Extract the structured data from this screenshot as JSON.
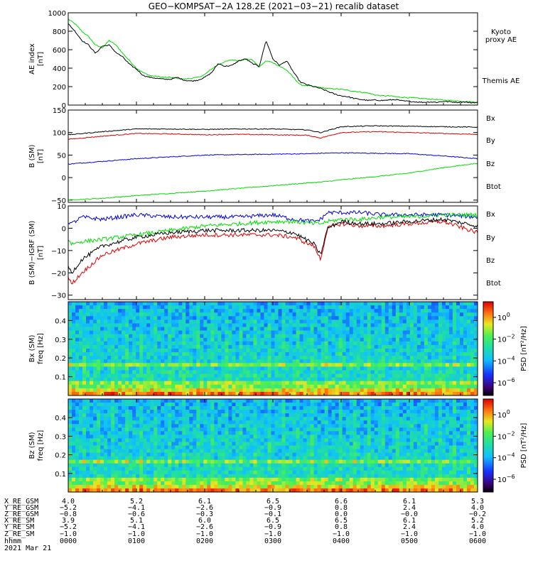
{
  "title": "GEO−KOMPSAT−2A 128.2E (2021−03−21) recalib dataset",
  "colors": {
    "black": "#000000",
    "red": "#dd0000",
    "blue": "#0000dd",
    "green": "#00dd00"
  },
  "time_axis": {
    "range_hours": [
      0,
      6
    ],
    "tick_hours": [
      0,
      1,
      2,
      3,
      4,
      5,
      6
    ]
  },
  "panels": [
    {
      "id": "ae",
      "ylabel1": "AE index",
      "ylabel2": "[nT]",
      "yticks": [
        "1000",
        "800",
        "600",
        "400",
        "200",
        "0"
      ],
      "yrange": [
        0,
        1000
      ],
      "series_labels": [
        {
          "text": "Kyoto",
          "color": "#00dd00"
        },
        {
          "text": "proxy AE",
          "color": "#00dd00"
        },
        {
          "text": "Themis AE",
          "color": "#000000"
        }
      ],
      "chart_data": {
        "type": "line",
        "x_hours": [
          0,
          0.1,
          0.2,
          0.3,
          0.4,
          0.5,
          0.6,
          0.7,
          0.8,
          0.9,
          1.0,
          1.1,
          1.2,
          1.3,
          1.4,
          1.5,
          1.6,
          1.7,
          1.8,
          1.9,
          2.0,
          2.1,
          2.2,
          2.3,
          2.4,
          2.5,
          2.6,
          2.7,
          2.8,
          2.9,
          3.0,
          3.1,
          3.2,
          3.3,
          3.4,
          3.5,
          3.6,
          3.7,
          3.8,
          3.9,
          4.0,
          4.1,
          4.2,
          4.3,
          4.4,
          4.5,
          4.6,
          4.7,
          4.8,
          4.9,
          5.0,
          5.1,
          5.2,
          5.3,
          5.4,
          5.5,
          5.6,
          5.7,
          5.8,
          5.9,
          6.0
        ],
        "series": [
          {
            "name": "Kyoto proxy AE",
            "color": "#00dd00",
            "values": [
              930,
              880,
              800,
              740,
              650,
              620,
              700,
              650,
              560,
              480,
              400,
              350,
              320,
              310,
              300,
              300,
              290,
              280,
              290,
              300,
              330,
              390,
              440,
              470,
              490,
              480,
              500,
              490,
              410,
              480,
              460,
              420,
              380,
              300,
              220,
              210,
              200,
              190,
              180,
              175,
              170,
              160,
              150,
              140,
              130,
              110,
              100,
              100,
              90,
              85,
              80,
              75,
              70,
              65,
              60,
              55,
              50,
              45,
              40,
              35,
              30
            ]
          },
          {
            "name": "Themis AE",
            "color": "#000000",
            "values": [
              880,
              800,
              700,
              650,
              560,
              640,
              650,
              570,
              520,
              440,
              390,
              320,
              300,
              290,
              280,
              280,
              300,
              270,
              260,
              270,
              300,
              350,
              450,
              420,
              430,
              480,
              500,
              450,
              420,
              700,
              500,
              430,
              480,
              360,
              250,
              220,
              200,
              180,
              150,
              120,
              100,
              90,
              70,
              60,
              50,
              55,
              50,
              55,
              60,
              45,
              40,
              35,
              30,
              35,
              30,
              40,
              35,
              30,
              35,
              25,
              30
            ]
          }
        ]
      }
    },
    {
      "id": "b",
      "ylabel1": "B (SM)",
      "ylabel2": "[nT]",
      "yticks": [
        "150",
        "100",
        "50",
        "0",
        "−50"
      ],
      "yrange": [
        -55,
        150
      ],
      "series_labels": [
        {
          "text": "Bx",
          "color": "#0000dd"
        },
        {
          "text": "By",
          "color": "#00dd00"
        },
        {
          "text": "Bz",
          "color": "#dd0000"
        },
        {
          "text": "Btot",
          "color": "#000000"
        }
      ],
      "chart_data": {
        "type": "line",
        "x_hours": [
          0,
          0.5,
          1,
          1.5,
          2,
          2.5,
          3,
          3.5,
          3.7,
          4,
          4.5,
          5,
          5.5,
          6
        ],
        "series": [
          {
            "name": "Bx",
            "color": "#0000dd",
            "values": [
              30,
              36,
              42,
              46,
              50,
              51,
              52,
              53,
              54,
              55,
              54,
              53,
              48,
              42
            ]
          },
          {
            "name": "By",
            "color": "#00dd00",
            "values": [
              -50,
              -46,
              -40,
              -35,
              -30,
              -24,
              -18,
              -12,
              -10,
              -5,
              2,
              10,
              22,
              32
            ]
          },
          {
            "name": "Bz",
            "color": "#dd0000",
            "values": [
              85,
              92,
              98,
              97,
              95,
              96,
              95,
              94,
              88,
              100,
              102,
              100,
              98,
              96
            ]
          },
          {
            "name": "Btot",
            "color": "#000000",
            "values": [
              95,
              102,
              108,
              108,
              107,
              108,
              108,
              106,
              100,
              113,
              115,
              114,
              113,
              112
            ]
          }
        ]
      }
    },
    {
      "id": "dbigrf",
      "ylabel1": "B (SM)−IGRF (SM)",
      "ylabel2": "[nT]",
      "yticks": [
        "10",
        "0",
        "−10",
        "−20",
        "−30"
      ],
      "yrange": [
        -32,
        10
      ],
      "series_labels": [
        {
          "text": "Bx",
          "color": "#0000dd"
        },
        {
          "text": "By",
          "color": "#00dd00"
        },
        {
          "text": "Bz",
          "color": "#dd0000"
        },
        {
          "text": "Btot",
          "color": "#000000"
        }
      ],
      "chart_data": {
        "type": "line",
        "x_hours": [
          0,
          0.05,
          0.2,
          0.5,
          1.0,
          1.5,
          2.0,
          2.5,
          3.0,
          3.3,
          3.6,
          3.7,
          3.8,
          4.0,
          4.3,
          4.6,
          5.0,
          5.5,
          6.0
        ],
        "series": [
          {
            "name": "Bx",
            "color": "#0000dd",
            "values": [
              3,
              2,
              5,
              4,
              6,
              5,
              5,
              5,
              6,
              4,
              3,
              4,
              7,
              7,
              7,
              6,
              6,
              6,
              5
            ]
          },
          {
            "name": "By",
            "color": "#00dd00",
            "values": [
              -5,
              -7,
              -6,
              -5,
              -3,
              -1,
              1,
              2,
              3,
              3,
              2,
              2,
              3,
              4,
              4,
              5,
              5,
              6,
              6
            ]
          },
          {
            "name": "Bz",
            "color": "#dd0000",
            "values": [
              -22,
              -25,
              -20,
              -12,
              -7,
              -4,
              -3,
              -3,
              -3,
              -4,
              -8,
              -14,
              0,
              2,
              1,
              1,
              2,
              3,
              -2
            ]
          },
          {
            "name": "Btot",
            "color": "#000000",
            "values": [
              -17,
              -20,
              -14,
              -8,
              -4,
              -2,
              -1,
              -1,
              -1,
              -2,
              -7,
              -12,
              0,
              3,
              2,
              2,
              3,
              4,
              1
            ]
          }
        ]
      }
    },
    {
      "id": "bxpsd",
      "ylabel1": "Bx (SM)",
      "ylabel2": "freq [Hz]",
      "yticks": [
        "0.4",
        "0.3",
        "0.2",
        "0.1"
      ],
      "yrange": [
        0,
        0.5
      ],
      "colorbar_label": "PSD [nT²/Hz]",
      "colorbar_ticks": [
        {
          "base": "10",
          "exp": "0"
        },
        {
          "base": "10",
          "exp": "−2"
        },
        {
          "base": "10",
          "exp": "−4"
        },
        {
          "base": "10",
          "exp": "−6"
        }
      ],
      "chart_data": {
        "type": "heatmap",
        "x_range_hours": [
          0,
          6
        ],
        "y_range_hz": [
          0,
          0.5
        ],
        "log10_psd_range": [
          -7,
          1
        ],
        "features": "high power below 0.05 Hz; harmonic band near 0.17 Hz"
      }
    },
    {
      "id": "bzpsd",
      "ylabel1": "Bz (SM)",
      "ylabel2": "freq [Hz]",
      "yticks": [
        "0.4",
        "0.3",
        "0.2",
        "0.1"
      ],
      "yrange": [
        0,
        0.5
      ],
      "colorbar_label": "PSD [nT²/Hz]",
      "colorbar_ticks": [
        {
          "base": "10",
          "exp": "0"
        },
        {
          "base": "10",
          "exp": "−2"
        },
        {
          "base": "10",
          "exp": "−4"
        },
        {
          "base": "10",
          "exp": "−6"
        }
      ],
      "chart_data": {
        "type": "heatmap",
        "x_range_hours": [
          0,
          6
        ],
        "y_range_hz": [
          0,
          0.5
        ],
        "log10_psd_range": [
          -7,
          1
        ],
        "features": "high power below 0.05 Hz; harmonic band near 0.17 Hz"
      }
    }
  ],
  "ephemeris": {
    "row_labels": [
      "X_RE_GSM",
      "Y_RE_GSM",
      "Z_RE_GSM",
      "X_RE_SM",
      "Y_RE_SM",
      "Z_RE_SM",
      "hhmm",
      "2021 Mar 21"
    ],
    "columns": [
      [
        "4.0",
        "−5.2",
        "−0.8",
        "3.9",
        "−5.2",
        "−1.0",
        "0000"
      ],
      [
        "5.2",
        "−4.1",
        "−0.6",
        "5.1",
        "−4.1",
        "−1.0",
        "0100"
      ],
      [
        "6.1",
        "−2.6",
        "−0.3",
        "6.0",
        "−2.6",
        "−1.0",
        "0200"
      ],
      [
        "6.5",
        "−0.9",
        "−0.1",
        "6.5",
        "−0.9",
        "−1.0",
        "0300"
      ],
      [
        "6.6",
        "0.8",
        "0.0",
        "6.5",
        "0.8",
        "−1.0",
        "0400"
      ],
      [
        "6.1",
        "2.4",
        "−0.0",
        "6.1",
        "2.4",
        "−1.0",
        "0500"
      ],
      [
        "5.3",
        "4.0",
        "−0.2",
        "5.2",
        "4.0",
        "−1.0",
        "0600"
      ]
    ]
  }
}
